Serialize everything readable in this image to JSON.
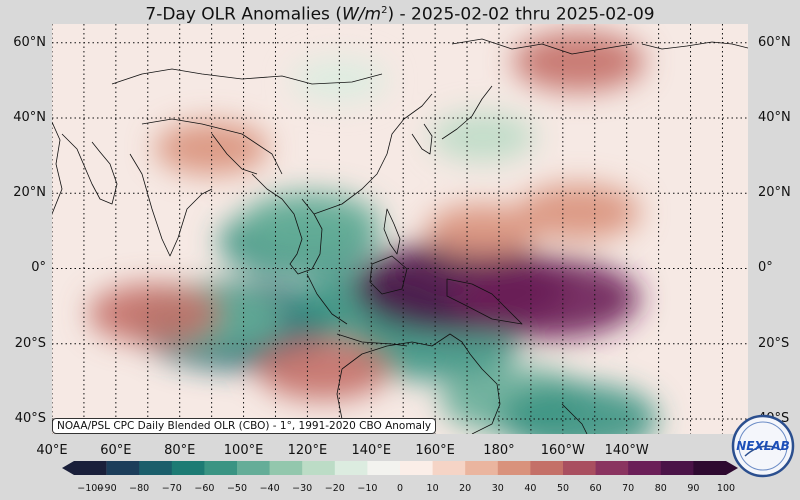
{
  "title": {
    "prefix": "7-Day OLR Anomalies (",
    "unit_base": "W/m",
    "unit_exp": "2",
    "suffix": ") - 2025-02-02 thru 2025-02-09"
  },
  "lat_labels": [
    "60°N",
    "40°N",
    "20°N",
    "0°",
    "20°S",
    "40°S"
  ],
  "lon_labels": [
    "40°E",
    "60°E",
    "80°E",
    "100°E",
    "120°E",
    "140°E",
    "160°E",
    "180°",
    "160°W",
    "140°W"
  ],
  "credit": "NOAA/PSL CPC Daily Blended OLR (CBO) - 1°, 1991-2020 CBO Anomaly",
  "colorbar": {
    "ticks": [
      "−100",
      "−90",
      "−80",
      "−70",
      "−60",
      "−50",
      "−40",
      "−30",
      "−20",
      "−10",
      "0",
      "10",
      "20",
      "30",
      "40",
      "50",
      "60",
      "70",
      "80",
      "90",
      "100"
    ],
    "colors": [
      "#1a1f3a",
      "#1c3d5a",
      "#1b5e6b",
      "#1d7b74",
      "#3a9483",
      "#65ad98",
      "#93c7ad",
      "#bcdcc6",
      "#dcece0",
      "#f3f3ef",
      "#fbeee8",
      "#f5d4c6",
      "#eab59f",
      "#d9927c",
      "#c47068",
      "#a94f60",
      "#8a3460",
      "#6b1f58",
      "#4a1347",
      "#2e0a30"
    ]
  },
  "logo": {
    "text": "NEXLAB"
  },
  "anomaly_blobs": [
    {
      "lon": 117,
      "lat": 7,
      "value": -55
    },
    {
      "lon": 121,
      "lat": 12,
      "value": -45
    },
    {
      "lon": 98,
      "lat": -15,
      "value": -80
    },
    {
      "lon": 90,
      "lat": -13,
      "value": -50
    },
    {
      "lon": 140,
      "lat": -10,
      "value": -55
    },
    {
      "lon": 160,
      "lat": -20,
      "value": -60
    },
    {
      "lon": 185,
      "lat": -35,
      "value": -50
    },
    {
      "lon": 205,
      "lat": -40,
      "value": -55
    },
    {
      "lon": 168,
      "lat": -5,
      "value": 85
    },
    {
      "lon": 195,
      "lat": -8,
      "value": 70
    },
    {
      "lon": 205,
      "lat": 15,
      "value": 35
    },
    {
      "lon": 72,
      "lat": -12,
      "value": 40
    },
    {
      "lon": 125,
      "lat": -27,
      "value": 40
    },
    {
      "lon": 90,
      "lat": 32,
      "value": 30
    },
    {
      "lon": 205,
      "lat": 55,
      "value": 40
    },
    {
      "lon": 175,
      "lat": 10,
      "value": 30
    },
    {
      "lon": 130,
      "lat": 50,
      "value": -20
    },
    {
      "lon": 175,
      "lat": 35,
      "value": -25
    }
  ]
}
